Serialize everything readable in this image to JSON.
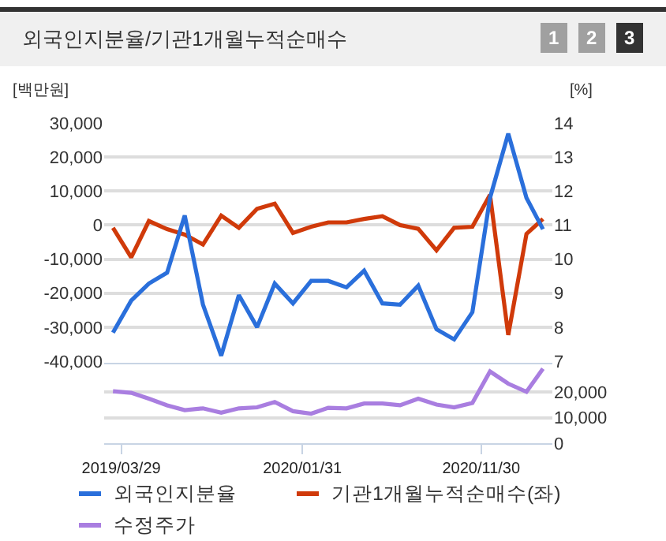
{
  "chart_data": [
    {
      "type": "line",
      "title": "외국인지분율/기관1개월누적순매수",
      "annotations": [
        "1",
        "2",
        "3"
      ],
      "ylabel": "[백만원]",
      "y2label": "[%]",
      "x": [
        "2019-03-15",
        "2019-04-15",
        "2019-05-15",
        "2019-06-15",
        "2019-07-15",
        "2019-08-15",
        "2019-09-15",
        "2019-10-15",
        "2019-11-15",
        "2019-12-15",
        "2020-01-15",
        "2020-02-15",
        "2020-03-15",
        "2020-04-15",
        "2020-05-15",
        "2020-06-15",
        "2020-07-15",
        "2020-08-15",
        "2020-09-15",
        "2020-10-15",
        "2020-11-15",
        "2020-12-15",
        "2021-01-15",
        "2021-02-15",
        "2021-03-15"
      ],
      "xlim": [
        "2019-02-28",
        "2021-03-31"
      ],
      "ylim": [
        -40000,
        30000
      ],
      "yticks": [
        {
          "value": -40000,
          "label": "-40,000"
        },
        {
          "value": -30000,
          "label": "-30,000"
        },
        {
          "value": -20000,
          "label": "-20,000"
        },
        {
          "value": -10000,
          "label": "-10,000"
        },
        0,
        {
          "value": 10000,
          "label": "10,000"
        },
        {
          "value": 20000,
          "label": "20,000"
        },
        {
          "value": 30000,
          "label": "30,000"
        }
      ],
      "y2lim": [
        7,
        14
      ],
      "y2ticks": [
        7,
        8,
        9,
        10,
        11,
        12,
        13,
        14
      ],
      "series": [
        {
          "name": "외국인지분율",
          "color": "#2a6fdb",
          "axis": "y2",
          "values": [
            7.84,
            8.78,
            9.28,
            9.6,
            11.28,
            8.66,
            7.16,
            8.94,
            8.0,
            9.28,
            8.7,
            9.36,
            9.36,
            9.17,
            9.66,
            8.7,
            8.66,
            9.22,
            7.94,
            7.64,
            8.44,
            11.8,
            13.69,
            11.8,
            10.88
          ]
        },
        {
          "name": "기관1개월누적순매수(좌)",
          "color": "#d03a0a",
          "values": [
            -800,
            -9500,
            1200,
            -1200,
            -2800,
            -5700,
            2800,
            -800,
            4800,
            6300,
            -2300,
            -500,
            800,
            800,
            1800,
            2600,
            0,
            -1100,
            -7400,
            -800,
            -500,
            8900,
            -32300,
            -2600,
            1800
          ]
        }
      ],
      "grid": "y",
      "legend": "bottom",
      "tick_labels": "y",
      "marker": "none",
      "line_style": "solid"
    },
    {
      "type": "line",
      "x": [
        "2019-03-15",
        "2019-04-15",
        "2019-05-15",
        "2019-06-15",
        "2019-07-15",
        "2019-08-15",
        "2019-09-15",
        "2019-10-15",
        "2019-11-15",
        "2019-12-15",
        "2020-01-15",
        "2020-02-15",
        "2020-03-15",
        "2020-04-15",
        "2020-05-15",
        "2020-06-15",
        "2020-07-15",
        "2020-08-15",
        "2020-09-15",
        "2020-10-15",
        "2020-11-15",
        "2020-12-15",
        "2021-01-15",
        "2021-02-15",
        "2021-03-15"
      ],
      "xlim": [
        "2019-02-28",
        "2021-03-31"
      ],
      "xticks": [
        {
          "value": "2019-03-29",
          "label": "2019/03/29"
        },
        {
          "value": "2020-01-31",
          "label": "2020/01/31"
        },
        {
          "value": "2020-11-30",
          "label": "2020/11/30"
        }
      ],
      "ylim": [
        0,
        31000
      ],
      "yticks": [
        0,
        {
          "value": 10000,
          "label": "10,000"
        },
        {
          "value": 20000,
          "label": "20,000"
        }
      ],
      "series": [
        {
          "name": "수정주가",
          "color": "#a97ee0",
          "values": [
            20400,
            19800,
            17500,
            14900,
            13000,
            13700,
            12000,
            13700,
            14100,
            16200,
            12600,
            11600,
            13900,
            13700,
            15600,
            15600,
            14900,
            17500,
            15200,
            14100,
            15800,
            28200,
            23400,
            20200,
            29300
          ]
        }
      ],
      "grid": "y",
      "legend": "bottom",
      "marker": "none",
      "line_style": "solid"
    }
  ]
}
